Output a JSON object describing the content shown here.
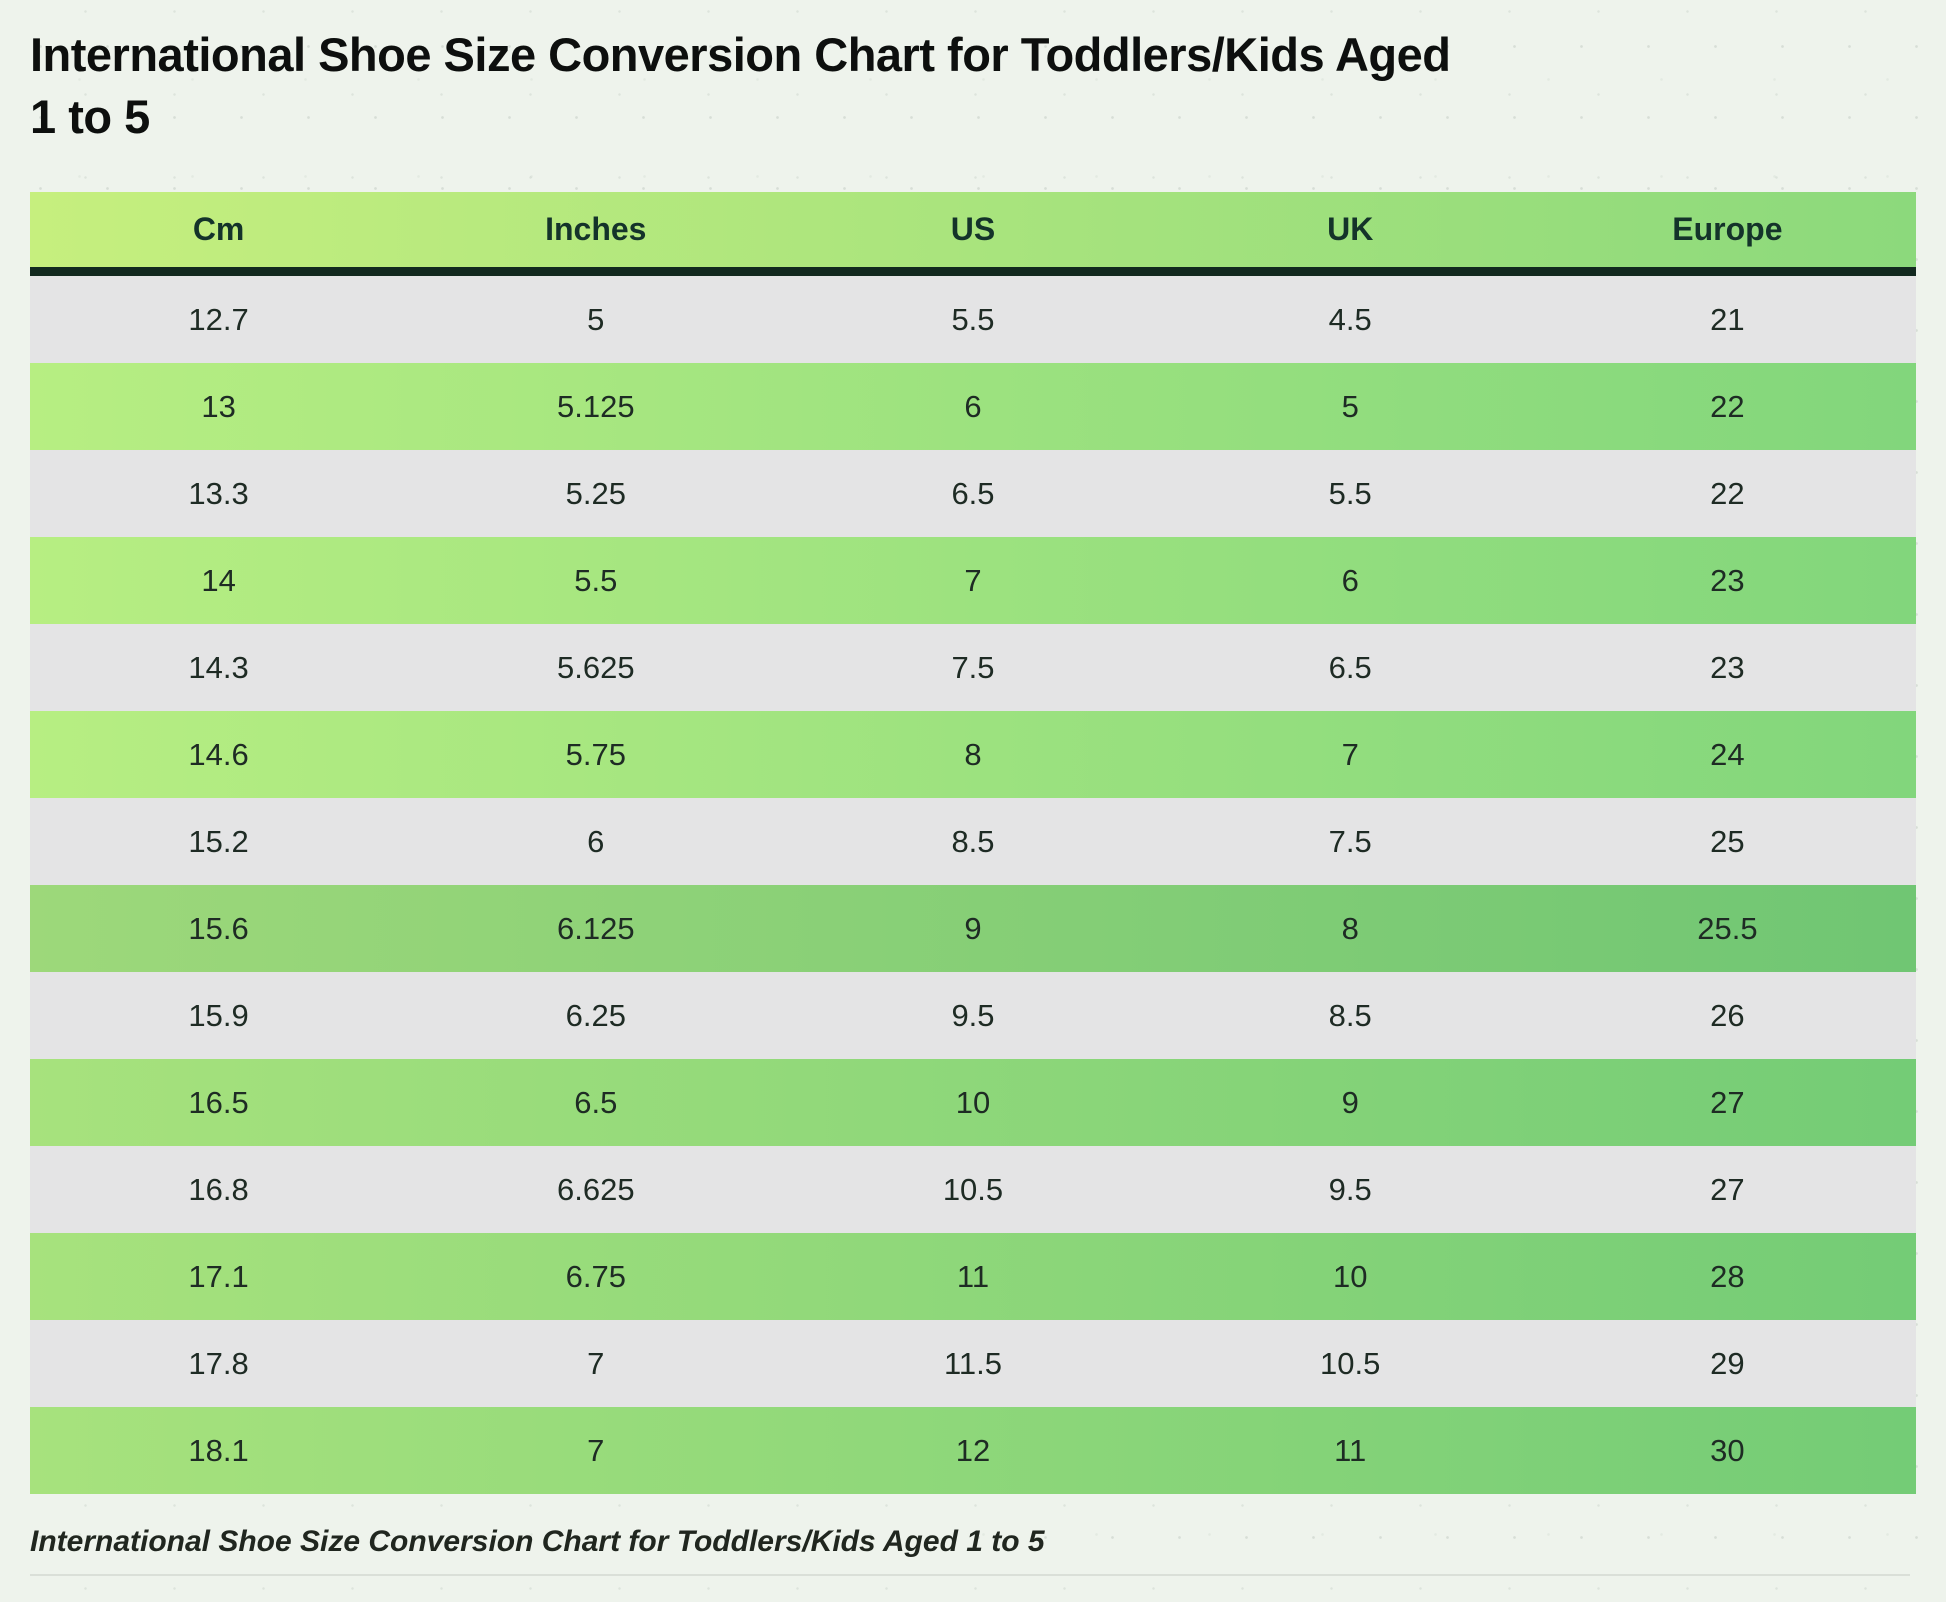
{
  "title": {
    "line1": "International Shoe Size Conversion Chart for Toddlers/Kids Aged",
    "line2": "1 to 5"
  },
  "caption": "International Shoe Size Conversion Chart for Toddlers/Kids Aged 1 to 5",
  "table": {
    "columns": [
      "Cm",
      "Inches",
      "US",
      "UK",
      "Europe"
    ],
    "rows": [
      [
        "12.7",
        "5",
        "5.5",
        "4.5",
        "21"
      ],
      [
        "13",
        "5.125",
        "6",
        "5",
        "22"
      ],
      [
        "13.3",
        "5.25",
        "6.5",
        "5.5",
        "22"
      ],
      [
        "14",
        "5.5",
        "7",
        "6",
        "23"
      ],
      [
        "14.3",
        "5.625",
        "7.5",
        "6.5",
        "23"
      ],
      [
        "14.6",
        "5.75",
        "8",
        "7",
        "24"
      ],
      [
        "15.2",
        "6",
        "8.5",
        "7.5",
        "25"
      ],
      [
        "15.6",
        "6.125",
        "9",
        "8",
        "25.5"
      ],
      [
        "15.9",
        "6.25",
        "9.5",
        "8.5",
        "26"
      ],
      [
        "16.5",
        "6.5",
        "10",
        "9",
        "27"
      ],
      [
        "16.8",
        "6.625",
        "10.5",
        "9.5",
        "27"
      ],
      [
        "17.1",
        "6.75",
        "11",
        "10",
        "28"
      ],
      [
        "17.8",
        "7",
        "11.5",
        "10.5",
        "29"
      ],
      [
        "18.1",
        "7",
        "12",
        "11",
        "30"
      ]
    ]
  },
  "colors": {
    "page_bg": "#eef3ec",
    "title_color": "#0d0f0e",
    "header_grad_start": "#c6ef7e",
    "header_grad_end": "#8cd97c",
    "header_border": "#12291f",
    "header_text": "#14332a",
    "cell_text": "#1e2b24",
    "gray_row": "#e4e4e5",
    "green1_start": "#b7ee82",
    "green1_end": "#82d67c",
    "green2_start": "#9dd87a",
    "green2_end": "#70c673",
    "green3_start": "#a7e27d",
    "green3_end": "#74cc76",
    "caption_color": "#20261f",
    "hr_color": "#dadfd8"
  },
  "chart_data": {
    "type": "table",
    "title": "International Shoe Size Conversion Chart for Toddlers/Kids Aged 1 to 5",
    "columns": [
      "Cm",
      "Inches",
      "US",
      "UK",
      "Europe"
    ],
    "rows": [
      [
        12.7,
        5,
        5.5,
        4.5,
        21
      ],
      [
        13,
        5.125,
        6,
        5,
        22
      ],
      [
        13.3,
        5.25,
        6.5,
        5.5,
        22
      ],
      [
        14,
        5.5,
        7,
        6,
        23
      ],
      [
        14.3,
        5.625,
        7.5,
        6.5,
        23
      ],
      [
        14.6,
        5.75,
        8,
        7,
        24
      ],
      [
        15.2,
        6,
        8.5,
        7.5,
        25
      ],
      [
        15.6,
        6.125,
        9,
        8,
        25.5
      ],
      [
        15.9,
        6.25,
        9.5,
        8.5,
        26
      ],
      [
        16.5,
        6.5,
        10,
        9,
        27
      ],
      [
        16.8,
        6.625,
        10.5,
        9.5,
        27
      ],
      [
        17.1,
        6.75,
        11,
        10,
        28
      ],
      [
        17.8,
        7,
        11.5,
        10.5,
        29
      ],
      [
        18.1,
        7,
        12,
        11,
        30
      ]
    ],
    "layout_hints": {
      "row_striping": "gray rows alternate with green gradient rows",
      "highlighted_row": "15.6 row is a darker green"
    }
  }
}
